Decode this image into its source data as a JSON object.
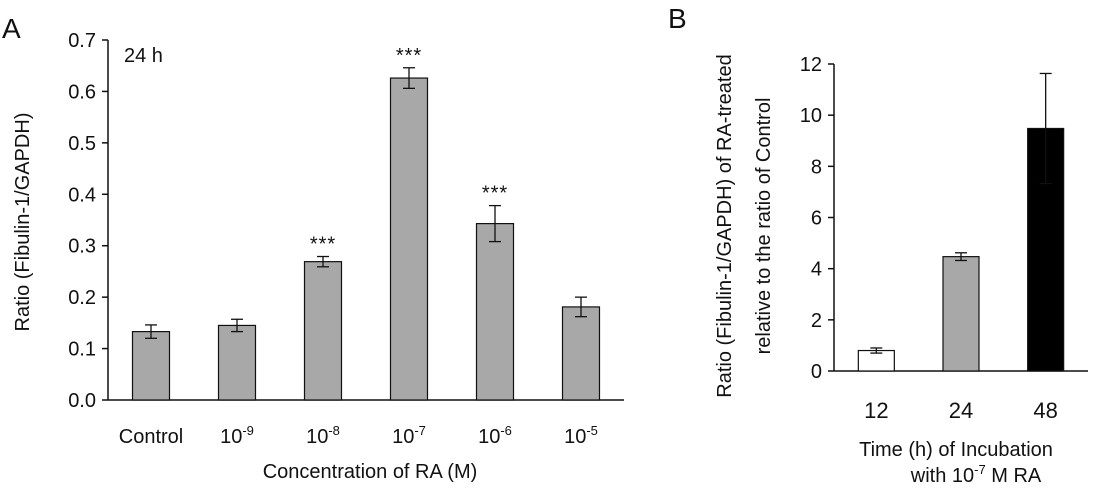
{
  "colors": {
    "axis": "#111111",
    "bar_gray": "#a8a8a8",
    "bar_white": "#ffffff",
    "bar_black": "#000000",
    "bar_stroke": "#111111"
  },
  "chart_data": [
    {
      "panel": "A",
      "type": "bar",
      "annotation": "24 h",
      "categories": [
        {
          "base": "Control",
          "exp": ""
        },
        {
          "base": "10",
          "exp": "-9"
        },
        {
          "base": "10",
          "exp": "-8"
        },
        {
          "base": "10",
          "exp": "-7"
        },
        {
          "base": "10",
          "exp": "-6"
        },
        {
          "base": "10",
          "exp": "-5"
        }
      ],
      "values": [
        0.133,
        0.145,
        0.269,
        0.626,
        0.343,
        0.181
      ],
      "errors": [
        0.013,
        0.012,
        0.01,
        0.02,
        0.035,
        0.019
      ],
      "significance": [
        "",
        "",
        "***",
        "***",
        "***",
        ""
      ],
      "xlabel": "Concentration of RA (M)",
      "ylabel": "Ratio (Fibulin-1/GAPDH)",
      "ylim": [
        0,
        0.7
      ],
      "yticks": [
        "0.0",
        "0.1",
        "0.2",
        "0.3",
        "0.4",
        "0.5",
        "0.6",
        "0.7"
      ],
      "bar_colors": [
        "gray",
        "gray",
        "gray",
        "gray",
        "gray",
        "gray"
      ],
      "grid": false
    },
    {
      "panel": "B",
      "type": "bar",
      "categories": [
        {
          "base": "12",
          "exp": ""
        },
        {
          "base": "24",
          "exp": ""
        },
        {
          "base": "48",
          "exp": ""
        }
      ],
      "values": [
        0.8,
        4.47,
        9.48
      ],
      "errors": [
        0.1,
        0.15,
        2.15
      ],
      "xlabel_line1": "Time (h) of Incubation",
      "xlabel_line2": {
        "before": "with 10",
        "exp": "-7",
        "after": " M RA"
      },
      "ylabel_line1": "Ratio (Fibulin-1/GAPDH) of RA-treated",
      "ylabel_line2": "relative to the ratio of Control",
      "ylim": [
        0,
        12
      ],
      "yticks": [
        "0",
        "2",
        "4",
        "6",
        "8",
        "10",
        "12"
      ],
      "bar_colors": [
        "white",
        "gray",
        "black"
      ],
      "grid": false
    }
  ]
}
